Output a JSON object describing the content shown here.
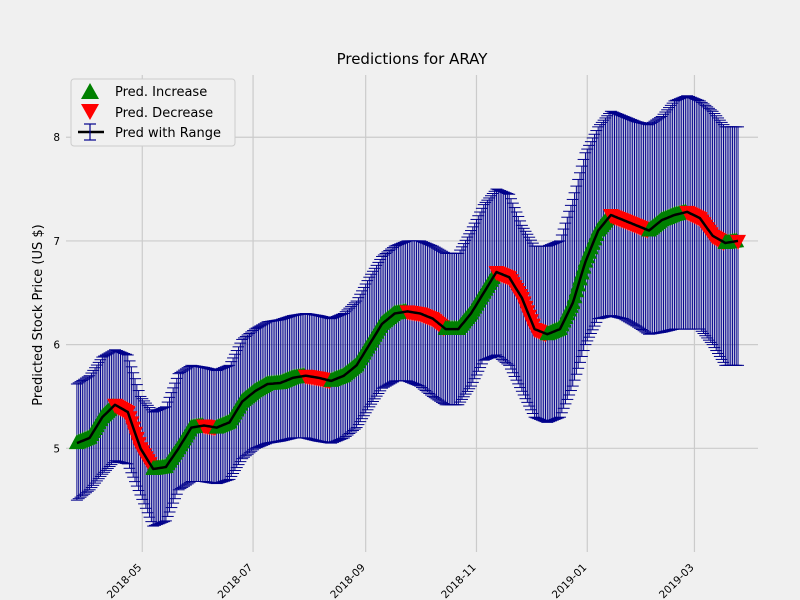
{
  "chart_data": {
    "type": "line",
    "title": "Predictions for ARAY",
    "xlabel": "",
    "ylabel": "Predicted Stock Price (US $)",
    "x_range": [
      "2018-03-20",
      "2019-04-05"
    ],
    "ylim": [
      4.0,
      8.6
    ],
    "y_ticks": [
      5,
      6,
      7,
      8
    ],
    "x_ticks": [
      {
        "date": "2018-05-01",
        "label": "2018-05"
      },
      {
        "date": "2018-07-01",
        "label": "2018-07"
      },
      {
        "date": "2018-09-01",
        "label": "2018-09"
      },
      {
        "date": "2018-11-01",
        "label": "2018-11"
      },
      {
        "date": "2019-01-01",
        "label": "2019-01"
      },
      {
        "date": "2019-03-01",
        "label": "2019-03"
      }
    ],
    "grid": true,
    "legend": {
      "placement": "top-left",
      "entries": [
        {
          "label": "Pred. Increase",
          "marker": "triangle-up",
          "color": "#008000"
        },
        {
          "label": "Pred. Decrease",
          "marker": "triangle-down",
          "color": "#ff0000"
        },
        {
          "label": "Pred with Range",
          "marker": "line-errorbar",
          "color": "#000000"
        }
      ]
    },
    "colors": {
      "increase": "#008000",
      "decrease": "#ff0000",
      "prediction": "#000000",
      "range": "#00008b",
      "grid": "#cbcbcb",
      "background": "#f0f0f0"
    },
    "series": {
      "dates": [
        "2018-03-26",
        "2018-04-02",
        "2018-04-09",
        "2018-04-16",
        "2018-04-23",
        "2018-04-30",
        "2018-05-07",
        "2018-05-14",
        "2018-05-21",
        "2018-05-28",
        "2018-06-04",
        "2018-06-11",
        "2018-06-18",
        "2018-06-25",
        "2018-07-02",
        "2018-07-09",
        "2018-07-16",
        "2018-07-23",
        "2018-07-30",
        "2018-08-06",
        "2018-08-13",
        "2018-08-20",
        "2018-08-27",
        "2018-09-03",
        "2018-09-10",
        "2018-09-17",
        "2018-09-24",
        "2018-10-01",
        "2018-10-08",
        "2018-10-15",
        "2018-10-22",
        "2018-10-29",
        "2018-11-05",
        "2018-11-12",
        "2018-11-19",
        "2018-11-26",
        "2018-12-03",
        "2018-12-10",
        "2018-12-17",
        "2018-12-24",
        "2018-12-31",
        "2019-01-07",
        "2019-01-14",
        "2019-01-21",
        "2019-01-28",
        "2019-02-04",
        "2019-02-11",
        "2019-02-18",
        "2019-02-25",
        "2019-03-04",
        "2019-03-11",
        "2019-03-18",
        "2019-03-25"
      ],
      "pred": [
        5.05,
        5.1,
        5.3,
        5.42,
        5.35,
        5.0,
        4.8,
        4.82,
        5.0,
        5.2,
        5.22,
        5.2,
        5.25,
        5.45,
        5.55,
        5.62,
        5.63,
        5.68,
        5.7,
        5.68,
        5.65,
        5.7,
        5.8,
        6.0,
        6.2,
        6.3,
        6.32,
        6.3,
        6.25,
        6.15,
        6.15,
        6.3,
        6.5,
        6.7,
        6.65,
        6.45,
        6.15,
        6.1,
        6.15,
        6.4,
        6.8,
        7.1,
        7.25,
        7.2,
        7.15,
        7.1,
        7.2,
        7.25,
        7.28,
        7.22,
        7.05,
        6.98,
        7.0
      ],
      "lower": [
        4.5,
        4.6,
        4.75,
        4.88,
        4.85,
        4.55,
        4.25,
        4.3,
        4.6,
        4.68,
        4.68,
        4.66,
        4.7,
        4.9,
        5.0,
        5.05,
        5.07,
        5.1,
        5.1,
        5.07,
        5.05,
        5.1,
        5.2,
        5.4,
        5.58,
        5.65,
        5.65,
        5.6,
        5.5,
        5.42,
        5.42,
        5.6,
        5.85,
        5.9,
        5.8,
        5.55,
        5.3,
        5.25,
        5.3,
        5.6,
        6.0,
        6.25,
        6.28,
        6.25,
        6.18,
        6.1,
        6.12,
        6.15,
        6.15,
        6.15,
        6.0,
        5.8,
        5.8
      ],
      "upper": [
        5.62,
        5.7,
        5.88,
        5.95,
        5.9,
        5.5,
        5.35,
        5.4,
        5.72,
        5.8,
        5.78,
        5.75,
        5.8,
        6.05,
        6.15,
        6.22,
        6.24,
        6.28,
        6.3,
        6.28,
        6.25,
        6.3,
        6.42,
        6.65,
        6.85,
        6.95,
        7.0,
        7.0,
        6.95,
        6.88,
        6.88,
        7.1,
        7.35,
        7.5,
        7.45,
        7.15,
        6.95,
        6.95,
        7.0,
        7.4,
        7.85,
        8.1,
        8.25,
        8.2,
        8.15,
        8.12,
        8.2,
        8.35,
        8.4,
        8.35,
        8.25,
        8.1,
        8.1
      ],
      "direction": [
        "dec",
        "inc",
        "inc",
        "dec",
        "dec",
        "dec",
        "dec",
        "inc",
        "inc",
        "dec",
        "dec",
        "dec",
        "dec",
        "inc",
        "inc",
        "dec",
        "inc",
        "dec",
        "dec",
        "dec",
        "dec",
        "inc",
        "inc",
        "inc",
        "dec",
        "dec",
        "dec",
        "dec",
        "dec",
        "inc",
        "inc",
        "inc",
        "inc",
        "dec",
        "dec",
        "dec",
        "dec",
        "inc",
        "inc",
        "inc",
        "inc",
        "inc",
        "dec",
        "dec",
        "dec",
        "inc",
        "inc",
        "dec",
        "dec",
        "dec",
        "dec",
        "dec",
        "dec"
      ]
    }
  }
}
